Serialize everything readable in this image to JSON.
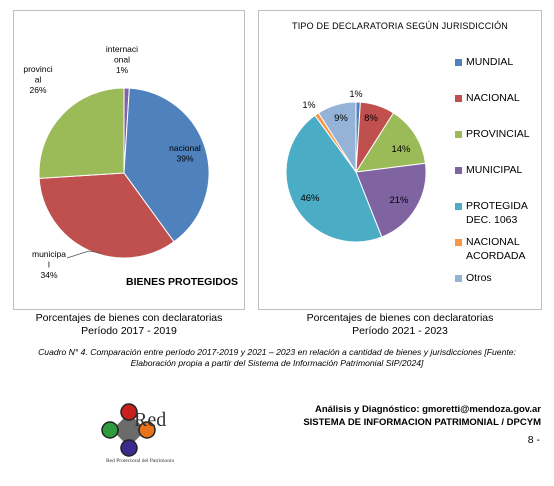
{
  "chart_data": [
    {
      "type": "pie",
      "title": "BIENES PROTEGIDOS",
      "slices": [
        {
          "label": "internacional",
          "display_label": "internaci\nonal",
          "value": 1,
          "display_value": "1%",
          "color": "#8064A2"
        },
        {
          "label": "nacional",
          "display_label": "nacional",
          "value": 39,
          "display_value": "39%",
          "color": "#4F81BD"
        },
        {
          "label": "municipal",
          "display_label": "municipa\nl",
          "value": 34,
          "display_value": "34%",
          "color": "#C0504D"
        },
        {
          "label": "provincial",
          "display_label": "provinci\nal",
          "value": 26,
          "display_value": "26%",
          "color": "#9BBB59"
        }
      ],
      "caption": "Porcentajes de bienes con declaratorias\nPeríodo 2017 - 2019"
    },
    {
      "type": "pie",
      "title": "TIPO DE DECLARATORIA SEGÚN JURISDICCIÓN",
      "legend_position": "right",
      "slices": [
        {
          "label": "MUNDIAL",
          "value": 1,
          "display_value": "1%",
          "color": "#4F81BD"
        },
        {
          "label": "NACIONAL",
          "value": 8,
          "display_value": "8%",
          "color": "#C0504D"
        },
        {
          "label": "PROVINCIAL",
          "value": 14,
          "display_value": "14%",
          "color": "#9BBB59"
        },
        {
          "label": "MUNICIPAL",
          "value": 21,
          "display_value": "21%",
          "color": "#8064A2"
        },
        {
          "label": "PROTEGIDA\nDEC. 1063",
          "value": 46,
          "display_value": "46%",
          "color": "#4BACC6"
        },
        {
          "label": "NACIONAL\nACORDADA",
          "value": 1,
          "display_value": "1%",
          "color": "#F79646"
        },
        {
          "label": "Otros",
          "value": 9,
          "display_value": "9%",
          "color": "#95B3D7"
        }
      ],
      "caption": "Porcentajes de bienes con declaratorias\nPeríodo 2021 - 2023"
    }
  ],
  "figure_caption": "Cuadro N° 4. Comparación entre período 2017-2019 y 2021 – 2023 en relación a cantidad de bienes y jurisdicciones  [Fuente:\nElaboración propia a partir del Sistema de Información Patrimonial SIP/2024]",
  "logo": {
    "name": "Red",
    "subtitle": "Red Protectoral del Patrimonio",
    "colors": [
      "#C8201E",
      "#2E9B3E",
      "#E8731A",
      "#3C2A8E"
    ]
  },
  "credits": {
    "line1": "Análisis y Diagnóstico: gmoretti@mendoza.gov.ar",
    "line2": "SISTEMA DE INFORMACION PATRIMONIAL / DPCYM"
  },
  "page_number": "8 -"
}
